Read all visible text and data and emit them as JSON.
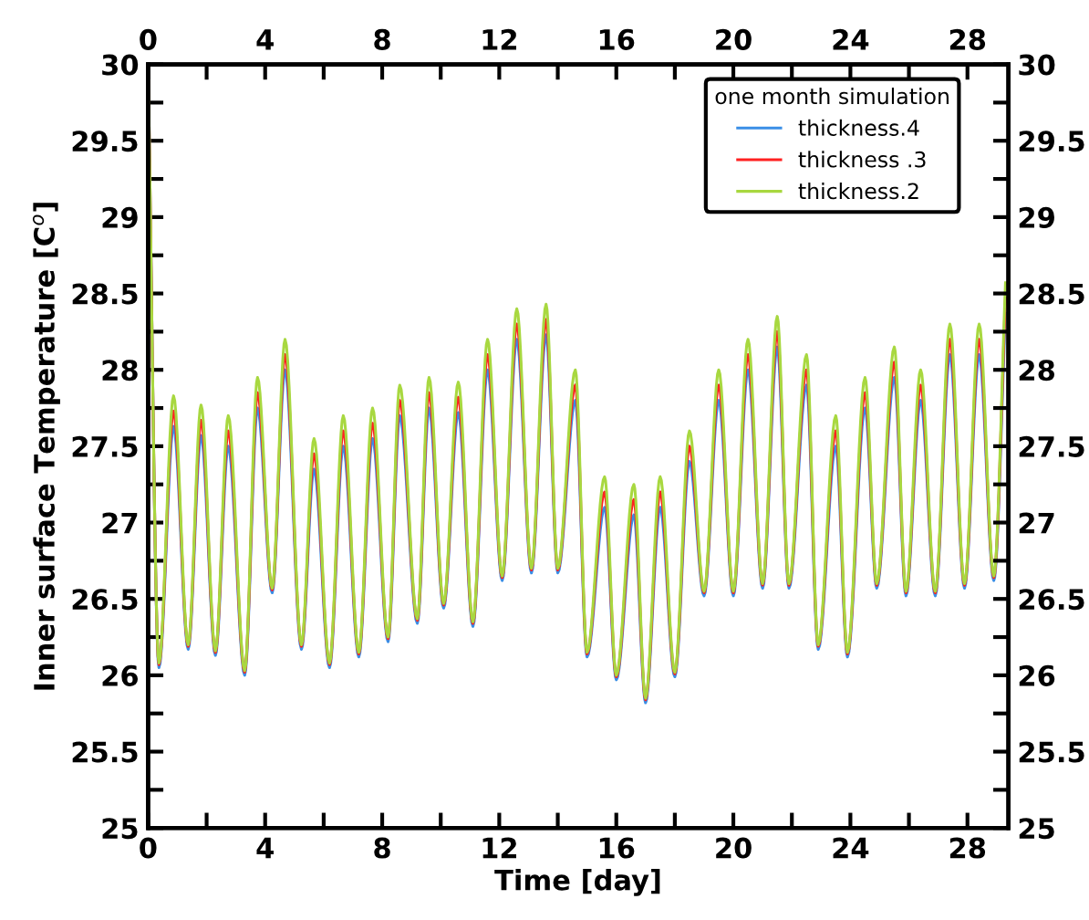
{
  "chart_data": {
    "type": "line",
    "xlabel": "Time [day]",
    "ylabel": "Inner surface Temperature [C$^{o}$]",
    "legend_title": "one month simulation",
    "legend": "top right",
    "grid": false,
    "marker": "none",
    "line_style": "solid",
    "x": [
      0,
      0.37,
      0.87,
      1.37,
      1.81,
      2.3,
      2.74,
      3.3,
      3.74,
      4.24,
      4.68,
      5.24,
      5.67,
      6.2,
      6.67,
      7.2,
      7.67,
      8.2,
      8.6,
      9.2,
      9.6,
      10.1,
      10.6,
      11.1,
      11.6,
      12.1,
      12.6,
      13.1,
      13.6,
      14.0,
      14.6,
      15.0,
      15.6,
      16.0,
      16.6,
      17.0,
      17.5,
      18.0,
      18.5,
      19.0,
      19.5,
      20.0,
      20.5,
      21.0,
      21.5,
      21.9,
      22.5,
      22.9,
      23.5,
      23.9,
      24.5,
      24.9,
      25.5,
      25.9,
      26.4,
      26.9,
      27.4,
      27.9,
      28.4,
      28.9,
      29.3
    ],
    "series": [
      {
        "name": "thickness.4",
        "color": "#3a8ee6",
        "values": [
          30,
          26.05,
          27.63,
          26.17,
          27.57,
          26.13,
          27.5,
          26.0,
          27.75,
          26.54,
          28.0,
          26.17,
          27.35,
          26.05,
          27.5,
          26.12,
          27.55,
          26.22,
          27.7,
          26.34,
          27.75,
          26.44,
          27.72,
          26.32,
          28.0,
          26.62,
          28.2,
          26.67,
          28.23,
          26.67,
          27.8,
          26.12,
          27.1,
          25.97,
          27.05,
          25.82,
          27.1,
          25.99,
          27.4,
          26.52,
          27.8,
          26.52,
          28.0,
          26.57,
          28.15,
          26.57,
          27.9,
          26.17,
          27.5,
          26.12,
          27.75,
          26.57,
          27.95,
          26.52,
          27.8,
          26.52,
          28.1,
          26.57,
          28.1,
          26.62,
          28.37
        ]
      },
      {
        "name": "thickness .3",
        "color": "#ff2020",
        "values": [
          30,
          26.07,
          27.73,
          26.19,
          27.67,
          26.15,
          27.6,
          26.02,
          27.85,
          26.56,
          28.1,
          26.19,
          27.45,
          26.07,
          27.6,
          26.14,
          27.65,
          26.24,
          27.8,
          26.36,
          27.85,
          26.46,
          27.82,
          26.34,
          28.1,
          26.64,
          28.3,
          26.69,
          28.33,
          26.69,
          27.9,
          26.14,
          27.2,
          25.99,
          27.15,
          25.84,
          27.2,
          26.01,
          27.5,
          26.54,
          27.9,
          26.54,
          28.1,
          26.59,
          28.25,
          26.59,
          28.0,
          26.19,
          27.6,
          26.14,
          27.85,
          26.59,
          28.05,
          26.54,
          27.9,
          26.54,
          28.2,
          26.59,
          28.2,
          26.64,
          28.47
        ]
      },
      {
        "name": "thickness.2",
        "color": "#a8d840",
        "values": [
          30,
          26.08,
          27.83,
          26.2,
          27.77,
          26.16,
          27.7,
          26.03,
          27.95,
          26.57,
          28.2,
          26.2,
          27.55,
          26.08,
          27.7,
          26.15,
          27.75,
          26.25,
          27.9,
          26.37,
          27.95,
          26.47,
          27.92,
          26.35,
          28.2,
          26.65,
          28.4,
          26.7,
          28.43,
          26.7,
          28.0,
          26.15,
          27.3,
          26.0,
          27.25,
          25.85,
          27.3,
          26.02,
          27.6,
          26.55,
          28.0,
          26.55,
          28.2,
          26.6,
          28.35,
          26.6,
          28.1,
          26.2,
          27.7,
          26.15,
          27.95,
          26.6,
          28.15,
          26.55,
          28.0,
          26.55,
          28.3,
          26.6,
          28.3,
          26.65,
          28.57
        ]
      }
    ],
    "xlim": [
      0,
      29.4
    ],
    "xticks": [
      0,
      {
        "value": 2,
        "label": null
      },
      4,
      {
        "value": 6,
        "label": null
      },
      8,
      {
        "value": 10,
        "label": null
      },
      12,
      {
        "value": 14,
        "label": null
      },
      16,
      {
        "value": 18,
        "label": null
      },
      20,
      {
        "value": 22,
        "label": null
      },
      24,
      {
        "value": 26,
        "label": null
      },
      28
    ],
    "x2lim": [
      0,
      29.4
    ],
    "x2ticks": [
      0,
      {
        "value": 2,
        "label": null
      },
      4,
      {
        "value": 6,
        "label": null
      },
      8,
      {
        "value": 10,
        "label": null
      },
      12,
      {
        "value": 14,
        "label": null
      },
      16,
      {
        "value": 18,
        "label": null
      },
      20,
      {
        "value": 22,
        "label": null
      },
      24,
      {
        "value": 26,
        "label": null
      },
      28
    ],
    "ylim": [
      25,
      30
    ],
    "yticks": [
      25,
      {
        "value": 25.25,
        "label": null
      },
      25.5,
      {
        "value": 25.75,
        "label": null
      },
      26,
      {
        "value": 26.25,
        "label": null
      },
      26.5,
      {
        "value": 26.75,
        "label": null
      },
      27,
      {
        "value": 27.25,
        "label": null
      },
      27.5,
      {
        "value": 27.75,
        "label": null
      },
      28,
      {
        "value": 28.25,
        "label": null
      },
      28.5,
      {
        "value": 28.75,
        "label": null
      },
      29,
      {
        "value": 29.25,
        "label": null
      },
      29.5,
      {
        "value": 29.75,
        "label": null
      },
      30
    ],
    "y2lim": [
      25,
      30
    ],
    "y2ticks": [
      25,
      {
        "value": 25.25,
        "label": null
      },
      25.5,
      {
        "value": 25.75,
        "label": null
      },
      26,
      {
        "value": 26.25,
        "label": null
      },
      26.5,
      {
        "value": 26.75,
        "label": null
      },
      27,
      {
        "value": 27.25,
        "label": null
      },
      27.5,
      {
        "value": 27.75,
        "label": null
      },
      28,
      {
        "value": 28.25,
        "label": null
      },
      28.5,
      {
        "value": 28.75,
        "label": null
      },
      29,
      {
        "value": 29.25,
        "label": null
      },
      29.5,
      {
        "value": 29.75,
        "label": null
      },
      30
    ]
  }
}
